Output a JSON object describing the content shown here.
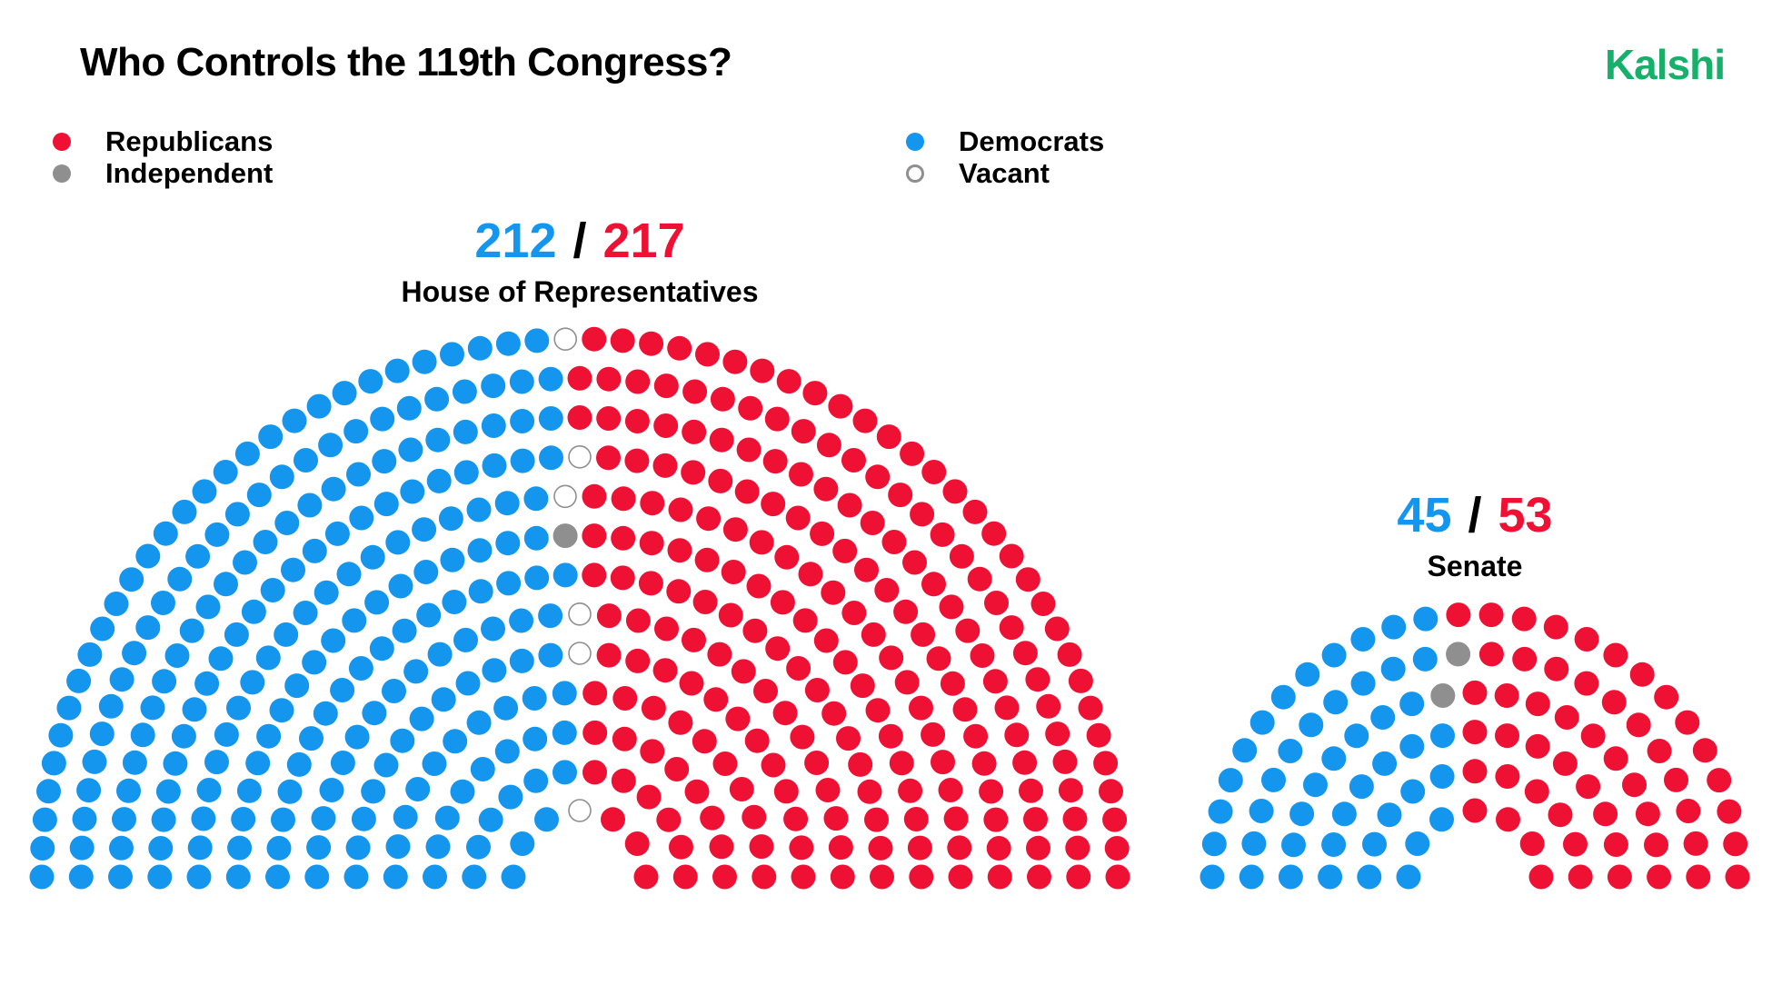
{
  "title": "Who Controls the 119th Congress?",
  "brand": "Kalshi",
  "colors": {
    "republican": "#ee1133",
    "democrat": "#1596ee",
    "independent": "#8f8f8f",
    "vacant_stroke": "#8f8f8f",
    "brand": "#16b06a"
  },
  "legend": {
    "republicans": "Republicans",
    "independent": "Independent",
    "democrats": "Democrats",
    "vacant": "Vacant"
  },
  "house": {
    "name": "House of Representatives",
    "dem_label": "212",
    "rep_label": "217",
    "separator": "/"
  },
  "senate": {
    "name": "Senate",
    "dem_label": "45",
    "rep_label": "53",
    "separator": "/"
  },
  "chart_data": [
    {
      "type": "parliament",
      "title": "House of Representatives",
      "series": [
        {
          "name": "Democrats",
          "value": 212
        },
        {
          "name": "Independent",
          "value": 1
        },
        {
          "name": "Vacant",
          "value": 6
        },
        {
          "name": "Republicans",
          "value": 217
        }
      ]
    },
    {
      "type": "parliament",
      "title": "Senate",
      "series": [
        {
          "name": "Democrats",
          "value": 45
        },
        {
          "name": "Independent",
          "value": 2
        },
        {
          "name": "Republicans",
          "value": 53
        }
      ]
    }
  ]
}
